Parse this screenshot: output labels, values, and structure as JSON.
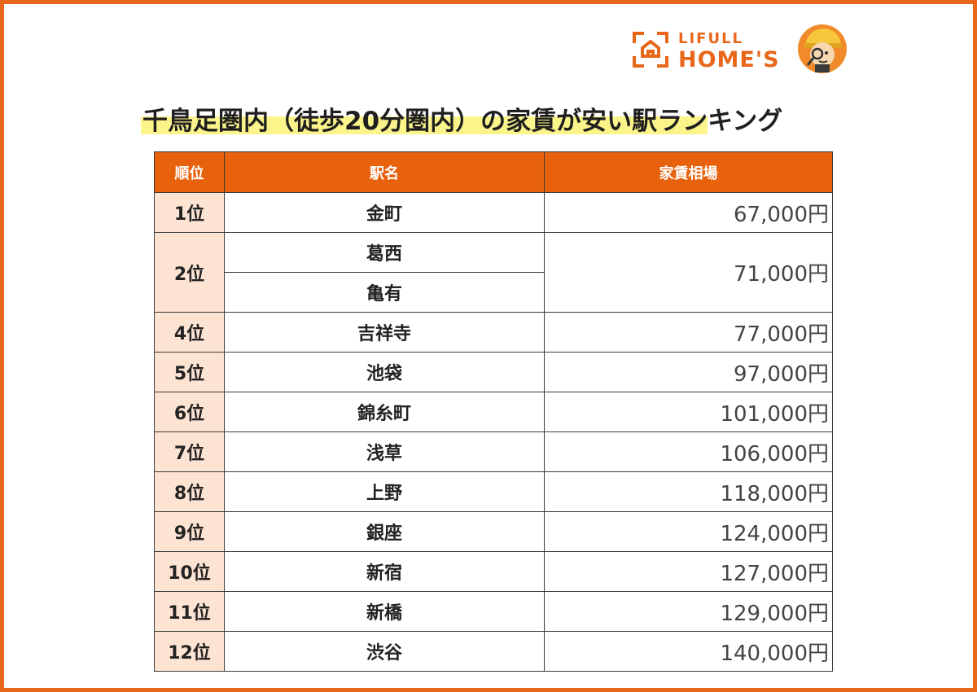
{
  "logo": {
    "line1": "LIFULL",
    "line2": "HOME'S",
    "mark_icon": "house-frame-icon",
    "mascot_icon": "mascot-detective-icon",
    "brand_color": "#e8671a"
  },
  "title": "千鳥足圏内（徒歩20分圏内）の家賃が安い駅ランキング",
  "table": {
    "headers": {
      "rank": "順位",
      "station": "駅名",
      "rent": "家賃相場"
    },
    "rows": [
      {
        "rank": "1位",
        "station": "金町",
        "rent": "67,000円"
      },
      {
        "rank": "2位",
        "station": "葛西",
        "rent": "71,000円"
      },
      {
        "rank": "",
        "station": "亀有",
        "rent": ""
      },
      {
        "rank": "4位",
        "station": "吉祥寺",
        "rent": "77,000円"
      },
      {
        "rank": "5位",
        "station": "池袋",
        "rent": "97,000円"
      },
      {
        "rank": "6位",
        "station": "錦糸町",
        "rent": "101,000円"
      },
      {
        "rank": "7位",
        "station": "浅草",
        "rent": "106,000円"
      },
      {
        "rank": "8位",
        "station": "上野",
        "rent": "118,000円"
      },
      {
        "rank": "9位",
        "station": "銀座",
        "rent": "124,000円"
      },
      {
        "rank": "10位",
        "station": "新宿",
        "rent": "127,000円"
      },
      {
        "rank": "11位",
        "station": "新橋",
        "rent": "129,000円"
      },
      {
        "rank": "12位",
        "station": "渋谷",
        "rent": "140,000円"
      }
    ],
    "header_color": "#e8620e",
    "rank_cell_color": "#fde3d2"
  },
  "colors": {
    "border": "#e8671a",
    "title_highlight": "#fbf48a"
  }
}
